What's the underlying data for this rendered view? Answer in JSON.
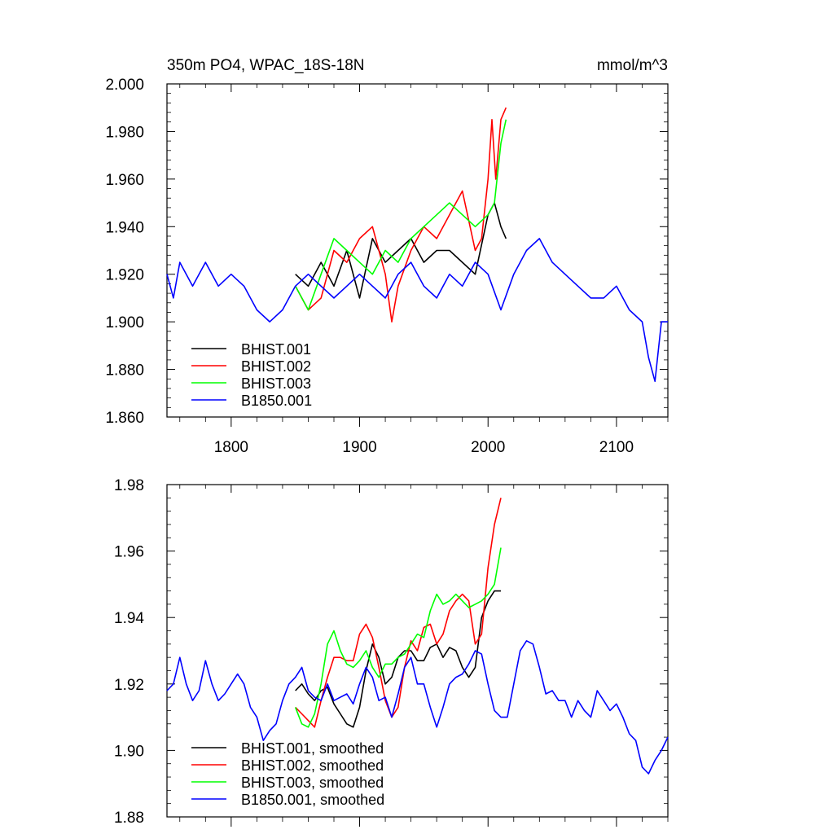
{
  "chart_data": [
    {
      "type": "line",
      "title": "350m PO4, WPAC_18S-18N",
      "units": "mmol/m^3",
      "xlim": [
        1750,
        2140
      ],
      "ylim": [
        1.86,
        2.0
      ],
      "x_ticks": [
        1800,
        1900,
        2000,
        2100
      ],
      "x_tick_labels": [
        "1800",
        "1900",
        "2000",
        "2100"
      ],
      "y_ticks": [
        1.86,
        1.88,
        1.9,
        1.92,
        1.94,
        1.96,
        1.98,
        2.0
      ],
      "y_tick_labels": [
        "1.860",
        "1.880",
        "1.900",
        "1.920",
        "1.940",
        "1.960",
        "1.980",
        "2.000"
      ],
      "legend_position": "bottom-left",
      "series": [
        {
          "name": "BHIST.001",
          "color": "#000000",
          "x": [
            1850,
            1860,
            1870,
            1880,
            1890,
            1900,
            1910,
            1920,
            1930,
            1940,
            1950,
            1960,
            1970,
            1980,
            1990,
            2000,
            2005,
            2010,
            2014
          ],
          "y": [
            1.92,
            1.915,
            1.925,
            1.915,
            1.93,
            1.91,
            1.935,
            1.925,
            1.93,
            1.935,
            1.925,
            1.93,
            1.93,
            1.925,
            1.92,
            1.945,
            1.95,
            1.94,
            1.935
          ]
        },
        {
          "name": "BHIST.002",
          "color": "#ff0000",
          "x": [
            1850,
            1860,
            1870,
            1880,
            1890,
            1900,
            1910,
            1920,
            1925,
            1930,
            1940,
            1950,
            1960,
            1970,
            1980,
            1990,
            1995,
            2000,
            2003,
            2006,
            2010,
            2014
          ],
          "y": [
            1.915,
            1.905,
            1.91,
            1.93,
            1.925,
            1.935,
            1.94,
            1.92,
            1.9,
            1.915,
            1.93,
            1.94,
            1.935,
            1.945,
            1.955,
            1.93,
            1.935,
            1.96,
            1.985,
            1.96,
            1.985,
            1.99
          ]
        },
        {
          "name": "BHIST.003",
          "color": "#00ff00",
          "x": [
            1850,
            1860,
            1870,
            1880,
            1890,
            1900,
            1910,
            1920,
            1930,
            1940,
            1950,
            1960,
            1970,
            1980,
            1990,
            2000,
            2005,
            2010,
            2014
          ],
          "y": [
            1.915,
            1.905,
            1.92,
            1.935,
            1.93,
            1.925,
            1.92,
            1.93,
            1.925,
            1.935,
            1.94,
            1.945,
            1.95,
            1.945,
            1.94,
            1.945,
            1.95,
            1.975,
            1.985
          ]
        },
        {
          "name": "B1850.001",
          "color": "#0000ff",
          "x": [
            1750,
            1755,
            1760,
            1770,
            1780,
            1790,
            1800,
            1810,
            1820,
            1830,
            1840,
            1850,
            1860,
            1870,
            1880,
            1890,
            1900,
            1910,
            1920,
            1930,
            1940,
            1950,
            1960,
            1970,
            1980,
            1990,
            2000,
            2010,
            2020,
            2030,
            2040,
            2050,
            2060,
            2070,
            2080,
            2090,
            2100,
            2110,
            2120,
            2125,
            2130,
            2135,
            2140
          ],
          "y": [
            1.92,
            1.91,
            1.925,
            1.915,
            1.925,
            1.915,
            1.92,
            1.915,
            1.905,
            1.9,
            1.905,
            1.915,
            1.92,
            1.915,
            1.91,
            1.915,
            1.92,
            1.915,
            1.91,
            1.92,
            1.925,
            1.915,
            1.91,
            1.92,
            1.915,
            1.925,
            1.92,
            1.905,
            1.92,
            1.93,
            1.935,
            1.925,
            1.92,
            1.915,
            1.91,
            1.91,
            1.915,
            1.905,
            1.9,
            1.885,
            1.875,
            1.9,
            1.9
          ]
        }
      ]
    },
    {
      "type": "line",
      "title": "",
      "xlim": [
        1750,
        2140
      ],
      "ylim": [
        1.88,
        1.98
      ],
      "x_ticks": [
        1800,
        1900,
        2000,
        2100
      ],
      "x_tick_labels": [],
      "y_ticks": [
        1.88,
        1.9,
        1.92,
        1.94,
        1.96,
        1.98
      ],
      "y_tick_labels": [
        "1.88",
        "1.90",
        "1.92",
        "1.94",
        "1.96",
        "1.98"
      ],
      "legend_position": "bottom-left",
      "series": [
        {
          "name": "BHIST.001, smoothed",
          "color": "#000000",
          "x": [
            1850,
            1855,
            1860,
            1865,
            1870,
            1875,
            1880,
            1885,
            1890,
            1895,
            1900,
            1905,
            1910,
            1915,
            1920,
            1925,
            1930,
            1935,
            1940,
            1945,
            1950,
            1955,
            1960,
            1965,
            1970,
            1975,
            1980,
            1985,
            1990,
            1995,
            2000,
            2005,
            2010
          ],
          "y": [
            1.918,
            1.92,
            1.917,
            1.915,
            1.918,
            1.919,
            1.914,
            1.911,
            1.908,
            1.907,
            1.913,
            1.924,
            1.932,
            1.928,
            1.92,
            1.922,
            1.928,
            1.93,
            1.93,
            1.927,
            1.927,
            1.931,
            1.932,
            1.928,
            1.931,
            1.93,
            1.925,
            1.922,
            1.925,
            1.94,
            1.945,
            1.948,
            1.948
          ]
        },
        {
          "name": "BHIST.002, smoothed",
          "color": "#ff0000",
          "x": [
            1850,
            1855,
            1860,
            1865,
            1870,
            1875,
            1880,
            1885,
            1890,
            1895,
            1900,
            1905,
            1910,
            1915,
            1920,
            1925,
            1930,
            1935,
            1940,
            1945,
            1950,
            1955,
            1960,
            1965,
            1970,
            1975,
            1980,
            1985,
            1990,
            1995,
            2000,
            2005,
            2010
          ],
          "y": [
            1.913,
            1.911,
            1.909,
            1.907,
            1.915,
            1.922,
            1.928,
            1.928,
            1.927,
            1.927,
            1.935,
            1.938,
            1.934,
            1.925,
            1.915,
            1.91,
            1.913,
            1.925,
            1.933,
            1.93,
            1.937,
            1.938,
            1.932,
            1.935,
            1.942,
            1.945,
            1.947,
            1.945,
            1.932,
            1.935,
            1.955,
            1.968,
            1.976
          ]
        },
        {
          "name": "BHIST.003, smoothed",
          "color": "#00ff00",
          "x": [
            1850,
            1855,
            1860,
            1865,
            1870,
            1875,
            1880,
            1885,
            1890,
            1895,
            1900,
            1905,
            1910,
            1915,
            1920,
            1925,
            1930,
            1935,
            1940,
            1945,
            1950,
            1955,
            1960,
            1965,
            1970,
            1975,
            1980,
            1985,
            1990,
            1995,
            2000,
            2005,
            2010
          ],
          "y": [
            1.913,
            1.908,
            1.907,
            1.911,
            1.92,
            1.932,
            1.936,
            1.93,
            1.926,
            1.925,
            1.927,
            1.93,
            1.925,
            1.922,
            1.926,
            1.926,
            1.928,
            1.929,
            1.932,
            1.935,
            1.934,
            1.942,
            1.947,
            1.944,
            1.945,
            1.947,
            1.945,
            1.943,
            1.944,
            1.945,
            1.947,
            1.95,
            1.961
          ]
        },
        {
          "name": "B1850.001, smoothed",
          "color": "#0000ff",
          "x": [
            1750,
            1755,
            1760,
            1765,
            1770,
            1775,
            1780,
            1785,
            1790,
            1795,
            1800,
            1805,
            1810,
            1815,
            1820,
            1825,
            1830,
            1835,
            1840,
            1845,
            1850,
            1855,
            1860,
            1865,
            1870,
            1875,
            1880,
            1885,
            1890,
            1895,
            1900,
            1905,
            1910,
            1915,
            1920,
            1925,
            1930,
            1935,
            1940,
            1945,
            1950,
            1955,
            1960,
            1965,
            1970,
            1975,
            1980,
            1985,
            1990,
            1995,
            2000,
            2005,
            2010,
            2015,
            2020,
            2025,
            2030,
            2035,
            2040,
            2045,
            2050,
            2055,
            2060,
            2065,
            2070,
            2075,
            2080,
            2085,
            2090,
            2095,
            2100,
            2105,
            2110,
            2115,
            2120,
            2125,
            2130,
            2135,
            2140
          ],
          "y": [
            1.918,
            1.92,
            1.928,
            1.92,
            1.915,
            1.918,
            1.927,
            1.92,
            1.915,
            1.917,
            1.92,
            1.923,
            1.92,
            1.913,
            1.91,
            1.903,
            1.906,
            1.908,
            1.915,
            1.92,
            1.922,
            1.925,
            1.918,
            1.916,
            1.915,
            1.92,
            1.915,
            1.916,
            1.917,
            1.914,
            1.92,
            1.925,
            1.922,
            1.915,
            1.916,
            1.91,
            1.917,
            1.925,
            1.928,
            1.92,
            1.92,
            1.913,
            1.907,
            1.913,
            1.92,
            1.922,
            1.923,
            1.926,
            1.93,
            1.929,
            1.92,
            1.912,
            1.91,
            1.91,
            1.92,
            1.93,
            1.933,
            1.932,
            1.925,
            1.917,
            1.918,
            1.915,
            1.915,
            1.91,
            1.915,
            1.912,
            1.91,
            1.918,
            1.915,
            1.912,
            1.914,
            1.91,
            1.905,
            1.903,
            1.895,
            1.893,
            1.897,
            1.9,
            1.904
          ]
        }
      ]
    }
  ]
}
